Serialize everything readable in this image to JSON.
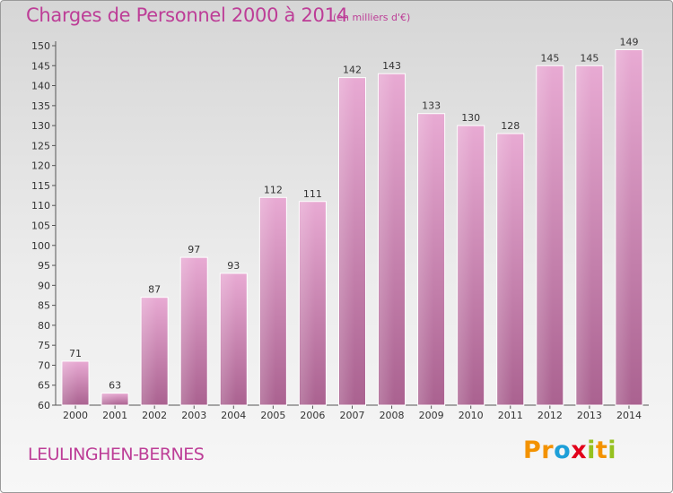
{
  "chart_data": {
    "type": "bar",
    "title": "Charges de Personnel 2000 à 2014",
    "subtitle": "(en milliers d'€)",
    "categories": [
      "2000",
      "2001",
      "2002",
      "2003",
      "2004",
      "2005",
      "2006",
      "2007",
      "2008",
      "2009",
      "2010",
      "2011",
      "2012",
      "2013",
      "2014"
    ],
    "values": [
      71,
      63,
      87,
      97,
      93,
      112,
      111,
      142,
      143,
      133,
      130,
      128,
      145,
      145,
      149
    ],
    "ylim": [
      60,
      150
    ],
    "yticks": [
      60,
      65,
      70,
      75,
      80,
      85,
      90,
      95,
      100,
      105,
      110,
      115,
      120,
      125,
      130,
      135,
      140,
      145,
      150
    ],
    "xlabel": "",
    "ylabel": "",
    "grid": false,
    "bar_color": "#c9779f"
  },
  "footer": {
    "town": "LEULINGHEN-BERNES",
    "logo_letters": [
      "P",
      "r",
      "o",
      "x",
      "i",
      "t",
      "i"
    ],
    "logo_colors": [
      "#f39200",
      "#f39200",
      "#1d9fd8",
      "#e2001a",
      "#95c11f",
      "#f39200",
      "#95c11f"
    ]
  }
}
